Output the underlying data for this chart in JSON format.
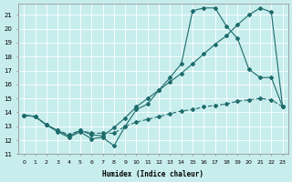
{
  "xlabel": "Humidex (Indice chaleur)",
  "bg_color": "#c8eded",
  "grid_color": "#ffffff",
  "line_color": "#1e6b6b",
  "xlim": [
    -0.5,
    23.5
  ],
  "ylim": [
    11,
    21.8
  ],
  "yticks": [
    11,
    12,
    13,
    14,
    15,
    16,
    17,
    18,
    19,
    20,
    21
  ],
  "xticks": [
    0,
    1,
    2,
    3,
    4,
    5,
    6,
    7,
    8,
    9,
    10,
    11,
    12,
    13,
    14,
    15,
    16,
    17,
    18,
    19,
    20,
    21,
    22,
    23
  ],
  "line1_x": [
    0,
    1,
    2,
    3,
    4,
    5,
    6,
    7,
    8,
    9,
    10,
    11,
    12,
    13,
    14,
    15,
    16,
    17,
    18,
    19,
    20,
    21,
    22,
    23
  ],
  "line1_y": [
    13.8,
    13.7,
    13.1,
    12.6,
    12.2,
    12.6,
    12.1,
    12.2,
    11.6,
    13.0,
    14.2,
    14.6,
    15.6,
    16.5,
    17.5,
    21.3,
    21.5,
    21.5,
    20.2,
    19.3,
    17.1,
    16.5,
    16.5,
    14.4
  ],
  "line2_x": [
    0,
    1,
    2,
    3,
    4,
    5,
    6,
    7,
    8,
    9,
    10,
    11,
    12,
    13,
    14,
    15,
    16,
    17,
    18,
    19,
    20,
    21,
    22,
    23
  ],
  "line2_y": [
    13.8,
    13.7,
    13.1,
    12.7,
    12.3,
    12.7,
    12.4,
    12.3,
    12.9,
    13.6,
    14.4,
    15.0,
    15.6,
    16.2,
    16.8,
    17.5,
    18.2,
    18.9,
    19.5,
    20.3,
    21.0,
    21.5,
    21.2,
    14.4
  ],
  "line3_x": [
    0,
    1,
    2,
    3,
    4,
    5,
    6,
    7,
    8,
    9,
    10,
    11,
    12,
    13,
    14,
    15,
    16,
    17,
    18,
    19,
    20,
    21,
    22,
    23
  ],
  "line3_y": [
    13.8,
    13.7,
    13.1,
    12.7,
    12.4,
    12.7,
    12.5,
    12.5,
    12.5,
    13.0,
    13.3,
    13.5,
    13.7,
    13.9,
    14.1,
    14.2,
    14.4,
    14.5,
    14.6,
    14.8,
    14.9,
    15.0,
    14.9,
    14.4
  ]
}
